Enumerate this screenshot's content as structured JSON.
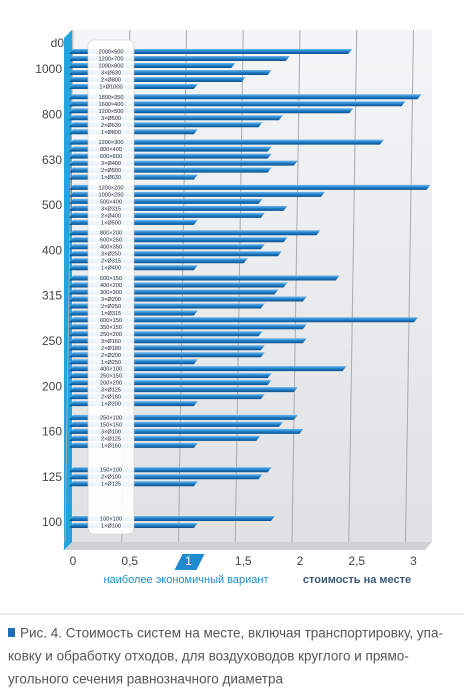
{
  "chart_data": {
    "type": "grouped-hbar",
    "y_axis_label": "d0",
    "x_axis_label": "стоимость на месте",
    "highlight_label": "наиболее экономичный вариант",
    "highlight_tick": 1,
    "color": "#1f7fc8",
    "xlim": [
      0,
      3.05
    ],
    "xticks": [
      0,
      {
        "value": 0.5,
        "label": "0,5"
      },
      1,
      {
        "value": 1.5,
        "label": "1,5"
      },
      2,
      {
        "value": 2.5,
        "label": "2,5"
      },
      3
    ],
    "grid": true,
    "groups": [
      {
        "label": "1000",
        "bars": [
          {
            "name": "2000×500",
            "value": 2.46
          },
          {
            "name": "1200×700",
            "value": 1.91
          },
          {
            "name": "1000×800",
            "value": 1.43
          },
          {
            "name": "3×Ø630",
            "value": 1.75
          },
          {
            "name": "2×Ø800",
            "value": 1.52
          },
          {
            "name": "1×Ø1000",
            "value": 1.1
          }
        ]
      },
      {
        "label": "800",
        "bars": [
          {
            "name": "1800×350",
            "value": 3.07
          },
          {
            "name": "1600×400",
            "value": 2.93
          },
          {
            "name": "1200×500",
            "value": 2.47
          },
          {
            "name": "3×Ø500",
            "value": 1.85
          },
          {
            "name": "2×Ø630",
            "value": 1.67
          },
          {
            "name": "1×Ø800",
            "value": 1.1
          }
        ]
      },
      {
        "label": "630",
        "bars": [
          {
            "name": "1200×300",
            "value": 2.74
          },
          {
            "name": "800×400",
            "value": 1.75
          },
          {
            "name": "600×600",
            "value": 1.75
          },
          {
            "name": "3×Ø400",
            "value": 1.98
          },
          {
            "name": "2×Ø500",
            "value": 1.75
          },
          {
            "name": "1×Ø630",
            "value": 1.1
          }
        ]
      },
      {
        "label": "500",
        "bars": [
          {
            "name": "1200×200",
            "value": 3.15
          },
          {
            "name": "1000×250",
            "value": 2.22
          },
          {
            "name": "500×400",
            "value": 1.67
          },
          {
            "name": "3×Ø315",
            "value": 1.89
          },
          {
            "name": "2×Ø400",
            "value": 1.69
          },
          {
            "name": "1×Ø500",
            "value": 1.1
          }
        ]
      },
      {
        "label": "400",
        "bars": [
          {
            "name": "800×200",
            "value": 2.18
          },
          {
            "name": "600×250",
            "value": 1.89
          },
          {
            "name": "400×350",
            "value": 1.69
          },
          {
            "name": "3×Ø250",
            "value": 1.84
          },
          {
            "name": "2×Ø315",
            "value": 1.54
          },
          {
            "name": "1×Ø400",
            "value": 1.1
          }
        ]
      },
      {
        "label": "315",
        "bars": [
          {
            "name": "600×150",
            "value": 2.35
          },
          {
            "name": "400×200",
            "value": 1.89
          },
          {
            "name": "300×300",
            "value": 1.81
          },
          {
            "name": "3×Ø200",
            "value": 2.06
          },
          {
            "name": "2×Ø250",
            "value": 1.69
          },
          {
            "name": "1×Ø315",
            "value": 1.1
          }
        ]
      },
      {
        "label": "250",
        "bars": [
          {
            "name": "600×150",
            "value": 3.04
          },
          {
            "name": "350×150",
            "value": 2.06
          },
          {
            "name": "250×200",
            "value": 1.67
          },
          {
            "name": "3×Ø160",
            "value": 2.06
          },
          {
            "name": "2×Ø180",
            "value": 1.69
          },
          {
            "name": "2×Ø200",
            "value": 1.69
          },
          {
            "name": "1×Ø250",
            "value": 1.1
          }
        ]
      },
      {
        "label": "200",
        "bars": [
          {
            "name": "400×100",
            "value": 2.41
          },
          {
            "name": "250×150",
            "value": 1.75
          },
          {
            "name": "200×200",
            "value": 1.75
          },
          {
            "name": "3×Ø125",
            "value": 1.98
          },
          {
            "name": "2×Ø160",
            "value": 1.69
          },
          {
            "name": "1×Ø200",
            "value": 1.1
          }
        ]
      },
      {
        "label": "160",
        "bars": [
          {
            "name": "250×100",
            "value": 1.98
          },
          {
            "name": "150×150",
            "value": 1.85
          },
          {
            "name": "3×Ø100",
            "value": 2.03
          },
          {
            "name": "2×Ø125",
            "value": 1.65
          },
          {
            "name": "1×Ø160",
            "value": 1.1
          }
        ]
      },
      {
        "label": "125",
        "bars": [
          {
            "name": "150×100",
            "value": 1.75
          },
          {
            "name": "2×Ø100",
            "value": 1.67
          },
          {
            "name": "1×Ø125",
            "value": 1.1
          }
        ]
      },
      {
        "label": "100",
        "bars": [
          {
            "name": "100×100",
            "value": 1.78
          },
          {
            "name": "1×Ø100",
            "value": 1.1
          }
        ]
      }
    ]
  },
  "caption": [
    "Рис. 4. Стоимость систем на месте, включая транспортировку, упа-",
    "ковку и обработку отходов, для воздуховодов круглого и прямо-",
    "угольного сечения равнозначного диаметра"
  ]
}
